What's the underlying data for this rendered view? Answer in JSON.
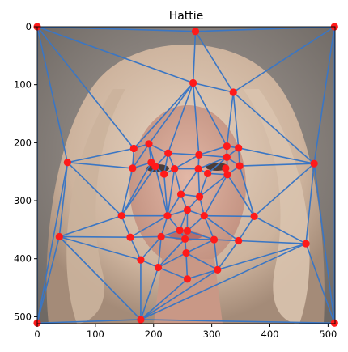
{
  "chart_data": {
    "type": "scatter",
    "title": "Hattie",
    "xlabel": "",
    "ylabel": "",
    "xlim": [
      0,
      512
    ],
    "ylim": [
      512,
      0
    ],
    "xticks": [
      0,
      100,
      200,
      300,
      400,
      500
    ],
    "yticks": [
      0,
      100,
      200,
      300,
      400,
      500
    ],
    "image": "blonde-woman-portrait",
    "colors": {
      "edges": "#3a76c4",
      "points": "#ff1a1a",
      "skin": "#d2a593",
      "hair": "#d8c0ab",
      "background": "#8f8782"
    },
    "points": [
      [
        0,
        0
      ],
      [
        272,
        8
      ],
      [
        511,
        0
      ],
      [
        0,
        511
      ],
      [
        178,
        505
      ],
      [
        511,
        511
      ],
      [
        268,
        97
      ],
      [
        337,
        113
      ],
      [
        52,
        234
      ],
      [
        38,
        362
      ],
      [
        476,
        236
      ],
      [
        462,
        374
      ],
      [
        166,
        210
      ],
      [
        192,
        202
      ],
      [
        225,
        218
      ],
      [
        326,
        206
      ],
      [
        346,
        209
      ],
      [
        164,
        244
      ],
      [
        196,
        234
      ],
      [
        203,
        241
      ],
      [
        218,
        254
      ],
      [
        236,
        245
      ],
      [
        277,
        245
      ],
      [
        293,
        253
      ],
      [
        324,
        244
      ],
      [
        348,
        240
      ],
      [
        278,
        221
      ],
      [
        326,
        225
      ],
      [
        327,
        255
      ],
      [
        247,
        289
      ],
      [
        279,
        293
      ],
      [
        145,
        326
      ],
      [
        224,
        326
      ],
      [
        258,
        316
      ],
      [
        287,
        326
      ],
      [
        373,
        327
      ],
      [
        245,
        351
      ],
      [
        258,
        352
      ],
      [
        160,
        363
      ],
      [
        213,
        362
      ],
      [
        254,
        366
      ],
      [
        304,
        367
      ],
      [
        346,
        369
      ],
      [
        256,
        390
      ],
      [
        178,
        402
      ],
      [
        208,
        415
      ],
      [
        310,
        419
      ],
      [
        258,
        435
      ]
    ],
    "triangles": [
      [
        0,
        1,
        6
      ],
      [
        1,
        2,
        7
      ],
      [
        1,
        6,
        7
      ],
      [
        0,
        6,
        12
      ],
      [
        0,
        8,
        12
      ],
      [
        0,
        3,
        8
      ],
      [
        3,
        8,
        9
      ],
      [
        3,
        9,
        4
      ],
      [
        9,
        4,
        44
      ],
      [
        9,
        38,
        44
      ],
      [
        2,
        7,
        10
      ],
      [
        2,
        10,
        5
      ],
      [
        5,
        10,
        11
      ],
      [
        5,
        11,
        4
      ],
      [
        4,
        11,
        46
      ],
      [
        4,
        46,
        47
      ],
      [
        4,
        47,
        45
      ],
      [
        4,
        45,
        44
      ],
      [
        6,
        12,
        13
      ],
      [
        6,
        13,
        14
      ],
      [
        6,
        14,
        26
      ],
      [
        6,
        26,
        15
      ],
      [
        6,
        15,
        7
      ],
      [
        7,
        15,
        16
      ],
      [
        7,
        16,
        10
      ],
      [
        8,
        12,
        17
      ],
      [
        8,
        17,
        31
      ],
      [
        8,
        31,
        9
      ],
      [
        9,
        31,
        38
      ],
      [
        12,
        13,
        17
      ],
      [
        13,
        17,
        18
      ],
      [
        13,
        18,
        19
      ],
      [
        13,
        19,
        14
      ],
      [
        14,
        19,
        20
      ],
      [
        14,
        20,
        21
      ],
      [
        14,
        21,
        26
      ],
      [
        26,
        21,
        22
      ],
      [
        15,
        26,
        27
      ],
      [
        15,
        16,
        27
      ],
      [
        16,
        27,
        25
      ],
      [
        16,
        25,
        10
      ],
      [
        27,
        25,
        28
      ],
      [
        26,
        22,
        27
      ],
      [
        22,
        27,
        23
      ],
      [
        27,
        23,
        28
      ],
      [
        17,
        18,
        31
      ],
      [
        18,
        19,
        31
      ],
      [
        19,
        20,
        32
      ],
      [
        19,
        31,
        32
      ],
      [
        20,
        21,
        32
      ],
      [
        21,
        22,
        29
      ],
      [
        21,
        29,
        32
      ],
      [
        22,
        29,
        30
      ],
      [
        22,
        30,
        23
      ],
      [
        23,
        28,
        30
      ],
      [
        28,
        30,
        34
      ],
      [
        28,
        25,
        35
      ],
      [
        28,
        34,
        35
      ],
      [
        25,
        10,
        35
      ],
      [
        10,
        35,
        11
      ],
      [
        29,
        30,
        33
      ],
      [
        29,
        32,
        33
      ],
      [
        30,
        33,
        34
      ],
      [
        32,
        33,
        36
      ],
      [
        33,
        34,
        37
      ],
      [
        33,
        36,
        37
      ],
      [
        31,
        38,
        32
      ],
      [
        32,
        38,
        39
      ],
      [
        32,
        39,
        36
      ],
      [
        36,
        39,
        40
      ],
      [
        36,
        37,
        40
      ],
      [
        37,
        40,
        41
      ],
      [
        34,
        37,
        41
      ],
      [
        34,
        41,
        42
      ],
      [
        34,
        42,
        35
      ],
      [
        35,
        42,
        11
      ],
      [
        42,
        11,
        46
      ],
      [
        38,
        39,
        44
      ],
      [
        39,
        44,
        45
      ],
      [
        39,
        45,
        40
      ],
      [
        40,
        45,
        43
      ],
      [
        40,
        43,
        41
      ],
      [
        41,
        43,
        46
      ],
      [
        41,
        42,
        46
      ],
      [
        43,
        45,
        47
      ],
      [
        43,
        46,
        47
      ]
    ]
  }
}
